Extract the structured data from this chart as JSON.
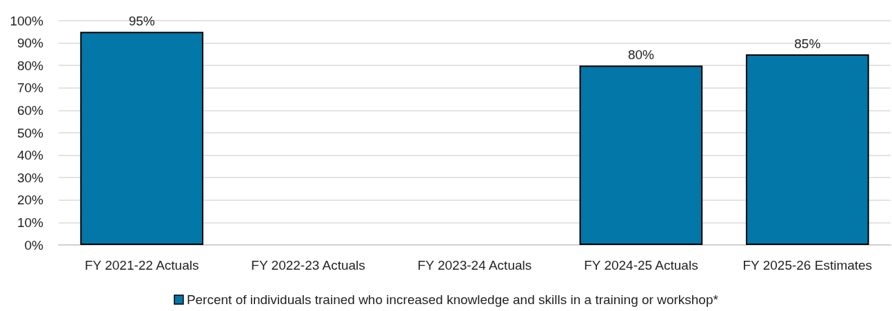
{
  "chart_data": {
    "type": "bar",
    "categories": [
      "FY 2021-22 Actuals",
      "FY 2022-23 Actuals",
      "FY 2023-24 Actuals",
      "FY 2024-25 Actuals",
      "FY 2025-26 Estimates"
    ],
    "series": [
      {
        "name": "Percent of individuals trained who increased knowledge and skills in a training or workshop*",
        "color": "#0277a8",
        "values": [
          95,
          null,
          null,
          80,
          85
        ],
        "value_labels": [
          "95%",
          null,
          null,
          "80%",
          "85%"
        ]
      }
    ],
    "ylim": [
      0,
      100
    ],
    "yticks": [
      {
        "value": 0,
        "label": "0%"
      },
      {
        "value": 10,
        "label": "10%"
      },
      {
        "value": 20,
        "label": "20%"
      },
      {
        "value": 30,
        "label": "30%"
      },
      {
        "value": 40,
        "label": "40%"
      },
      {
        "value": 50,
        "label": "50%"
      },
      {
        "value": 60,
        "label": "60%"
      },
      {
        "value": 70,
        "label": "70%"
      },
      {
        "value": 80,
        "label": "80%"
      },
      {
        "value": 90,
        "label": "90%"
      },
      {
        "value": 100,
        "label": "100%"
      }
    ],
    "grid": "y",
    "legend": "bottom"
  }
}
